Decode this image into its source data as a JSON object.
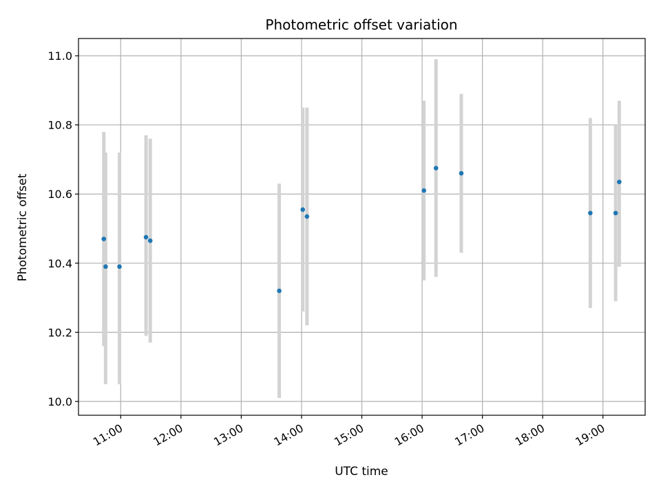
{
  "chart_data": {
    "type": "scatter",
    "title": "Photometric offset variation",
    "xlabel": "UTC time",
    "ylabel": "Photometric offset",
    "grid": true,
    "x_unit": "hours UTC",
    "xlim": [
      10.3,
      19.7
    ],
    "ylim": [
      9.96,
      11.05
    ],
    "xticks": [
      {
        "value": 11,
        "label": "11:00"
      },
      {
        "value": 12,
        "label": "12:00"
      },
      {
        "value": 13,
        "label": "13:00"
      },
      {
        "value": 14,
        "label": "14:00"
      },
      {
        "value": 15,
        "label": "15:00"
      },
      {
        "value": 16,
        "label": "16:00"
      },
      {
        "value": 17,
        "label": "17:00"
      },
      {
        "value": 18,
        "label": "18:00"
      },
      {
        "value": 19,
        "label": "19:00"
      }
    ],
    "yticks": [
      {
        "value": 10.0,
        "label": "10.0"
      },
      {
        "value": 10.2,
        "label": "10.2"
      },
      {
        "value": 10.4,
        "label": "10.4"
      },
      {
        "value": 10.6,
        "label": "10.6"
      },
      {
        "value": 10.8,
        "label": "10.8"
      },
      {
        "value": 11.0,
        "label": "11.0"
      }
    ],
    "colors": {
      "points": "#1f77b4",
      "errorbars": "#d3d3d3",
      "grid": "#b0b0b0"
    },
    "points": [
      {
        "x": 10.72,
        "y": 10.47,
        "ylow": 10.16,
        "yhigh": 10.78
      },
      {
        "x": 10.75,
        "y": 10.39,
        "ylow": 10.05,
        "yhigh": 10.72
      },
      {
        "x": 10.98,
        "y": 10.39,
        "ylow": 10.05,
        "yhigh": 10.72
      },
      {
        "x": 11.42,
        "y": 10.475,
        "ylow": 10.19,
        "yhigh": 10.77
      },
      {
        "x": 11.49,
        "y": 10.465,
        "ylow": 10.17,
        "yhigh": 10.76
      },
      {
        "x": 13.63,
        "y": 10.32,
        "ylow": 10.01,
        "yhigh": 10.63
      },
      {
        "x": 14.02,
        "y": 10.555,
        "ylow": 10.26,
        "yhigh": 10.85
      },
      {
        "x": 14.09,
        "y": 10.535,
        "ylow": 10.22,
        "yhigh": 10.85
      },
      {
        "x": 16.03,
        "y": 10.61,
        "ylow": 10.35,
        "yhigh": 10.87
      },
      {
        "x": 16.23,
        "y": 10.675,
        "ylow": 10.36,
        "yhigh": 10.99
      },
      {
        "x": 16.65,
        "y": 10.66,
        "ylow": 10.43,
        "yhigh": 10.89
      },
      {
        "x": 18.79,
        "y": 10.545,
        "ylow": 10.27,
        "yhigh": 10.82
      },
      {
        "x": 19.21,
        "y": 10.545,
        "ylow": 10.29,
        "yhigh": 10.8
      },
      {
        "x": 19.27,
        "y": 10.635,
        "ylow": 10.39,
        "yhigh": 10.87
      }
    ]
  }
}
